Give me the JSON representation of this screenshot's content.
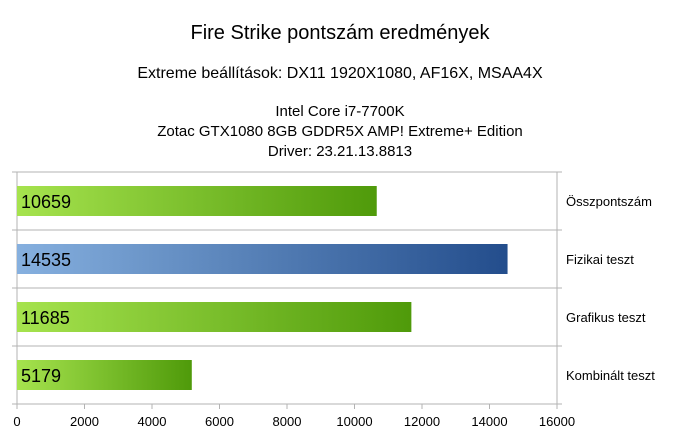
{
  "chart_data": {
    "type": "bar",
    "orientation": "horizontal",
    "title": "Fire Strike pontszám eredmények",
    "subtitle": "Extreme beállítások: DX11 1920X1080, AF16X, MSAA4X",
    "info_lines": [
      "Intel Core i7-7700K",
      "Zotac GTX1080 8GB GDDR5X AMP! Extreme+ Edition",
      "Driver: 23.21.13.8813"
    ],
    "categories": [
      "Összpontszám",
      "Fizikai teszt",
      "Grafikus teszt",
      "Kombinált teszt"
    ],
    "values": [
      10659,
      14535,
      11685,
      5179
    ],
    "value_labels": [
      "10659",
      "14535",
      "11685",
      "5179"
    ],
    "bar_styles": [
      "green",
      "blue",
      "green",
      "green"
    ],
    "colors": {
      "green_light": "#a6e34e",
      "green_dark": "#4f9a0a",
      "blue_light": "#86b0df",
      "blue_dark": "#234d8c",
      "grid": "#b3b3b3"
    },
    "xlim": [
      0,
      16000
    ],
    "xticks": [
      0,
      2000,
      4000,
      6000,
      8000,
      10000,
      12000,
      14000,
      16000
    ],
    "xtick_labels": [
      "0",
      "2000",
      "4000",
      "6000",
      "8000",
      "10000",
      "12000",
      "14000",
      "16000"
    ],
    "grid": true,
    "legend": false,
    "category_labels_position": "right"
  }
}
